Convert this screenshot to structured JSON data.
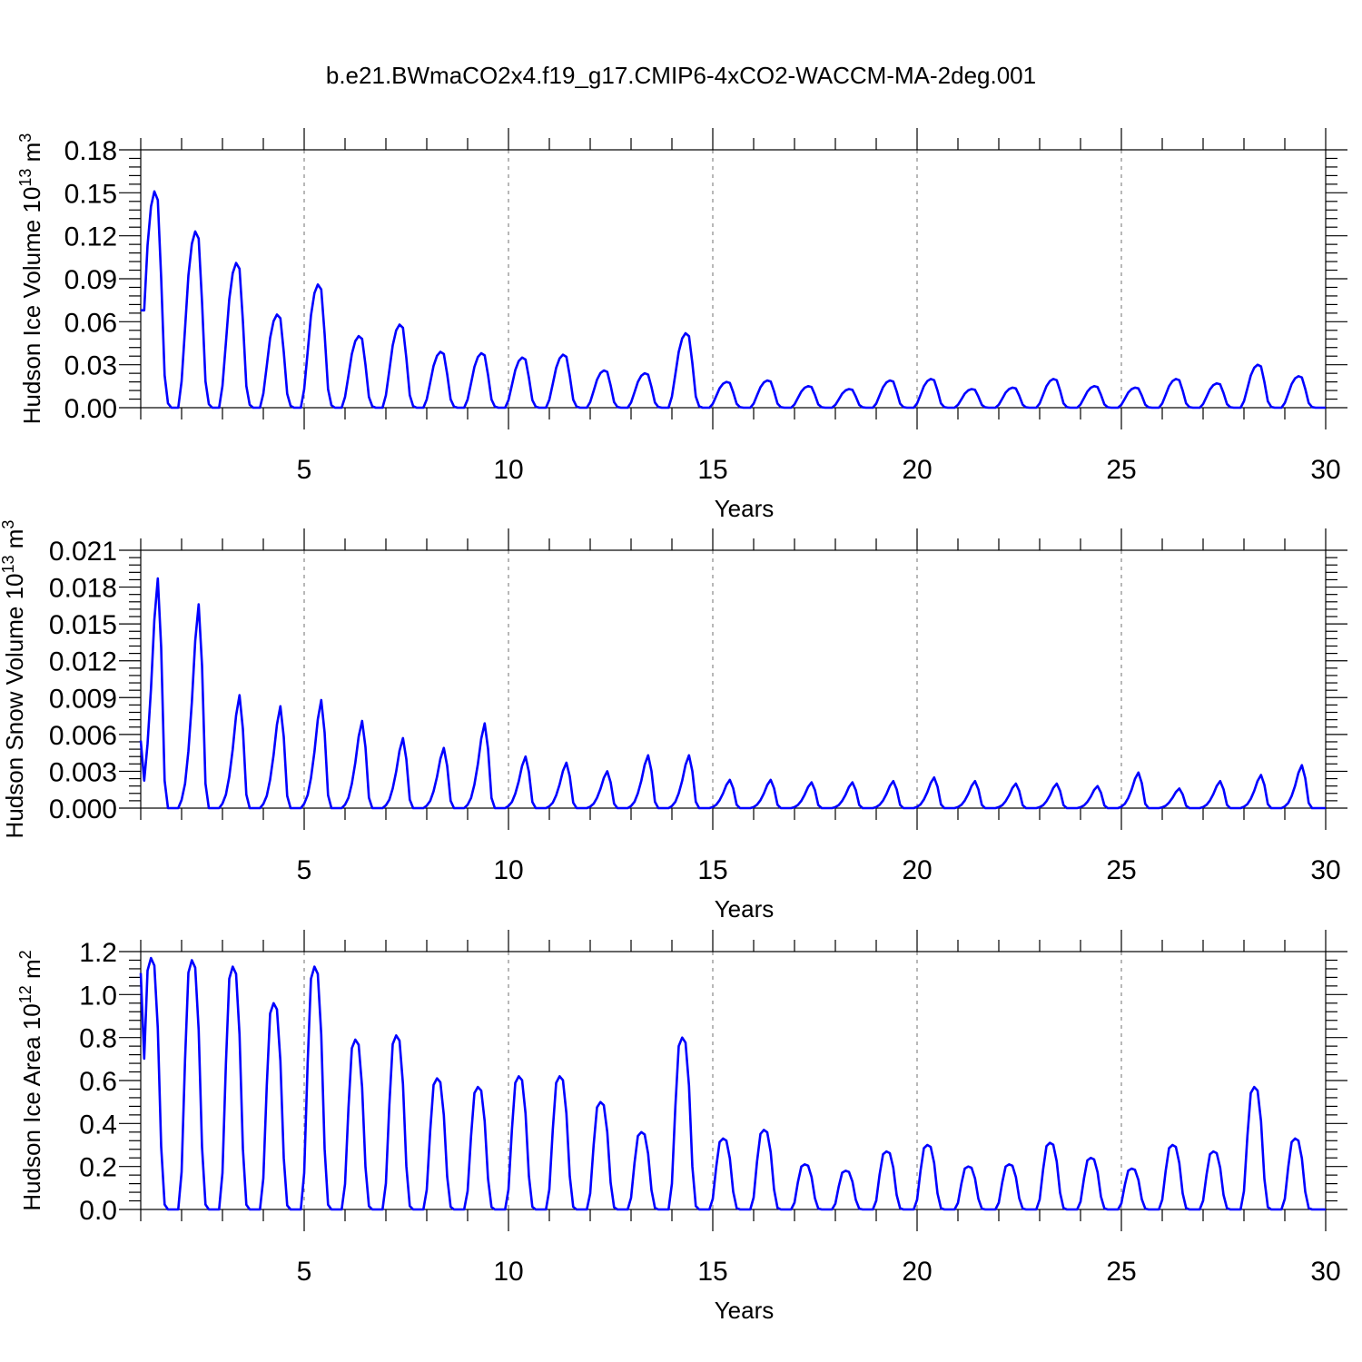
{
  "title": "b.e21.BWmaCO2x4.f19_g17.CMIP6-4xCO2-WACCM-MA-2deg.001",
  "colors": {
    "series": "#0000ff",
    "grid": "#888888",
    "axis": "#000000"
  },
  "chart_data": [
    {
      "type": "line",
      "ylabel": {
        "text": "Hudson Ice Volume 10",
        "sup1": "13",
        "mid": " m",
        "sup2": "3"
      },
      "xlabel": "Years",
      "xlim": [
        1,
        30
      ],
      "ylim": [
        0,
        0.18
      ],
      "xticks": [
        "5",
        "10",
        "15",
        "20",
        "25",
        "30"
      ],
      "xtick_values": [
        5,
        10,
        15,
        20,
        25,
        30
      ],
      "yticks": [
        "0.00",
        "0.03",
        "0.06",
        "0.09",
        "0.12",
        "0.15",
        "0.18"
      ],
      "ytick_values": [
        0,
        0.03,
        0.06,
        0.09,
        0.12,
        0.15,
        0.18
      ],
      "grid": "dashed vertical at major x ticks",
      "series": [
        {
          "color": "#0000ff",
          "peaks": [
            0.151,
            0.123,
            0.101,
            0.065,
            0.086,
            0.05,
            0.058,
            0.039,
            0.038,
            0.035,
            0.037,
            0.026,
            0.024,
            0.052,
            0.018,
            0.019,
            0.015,
            0.013,
            0.019,
            0.02,
            0.013,
            0.014,
            0.02,
            0.015,
            0.014,
            0.02,
            0.017,
            0.03,
            0.022
          ],
          "start_value": 0.068,
          "shape": [
            0.15,
            0.45,
            0.75,
            0.93,
            1.0,
            0.96,
            0.6,
            0.15,
            0.02,
            0,
            0,
            0
          ]
        }
      ]
    },
    {
      "type": "line",
      "ylabel": {
        "text": "Hudson Snow Volume 10",
        "sup1": "13",
        "mid": " m",
        "sup2": "3"
      },
      "xlabel": "Years",
      "xlim": [
        1,
        30
      ],
      "ylim": [
        0,
        0.021
      ],
      "xticks": [
        "5",
        "10",
        "15",
        "20",
        "25",
        "30"
      ],
      "xtick_values": [
        5,
        10,
        15,
        20,
        25,
        30
      ],
      "yticks": [
        "0.000",
        "0.003",
        "0.006",
        "0.009",
        "0.012",
        "0.015",
        "0.018",
        "0.021"
      ],
      "ytick_values": [
        0,
        0.003,
        0.006,
        0.009,
        0.012,
        0.015,
        0.018,
        0.021
      ],
      "grid": "dashed vertical at major x ticks",
      "series": [
        {
          "color": "#0000ff",
          "peaks": [
            0.0187,
            0.0166,
            0.0092,
            0.0083,
            0.0088,
            0.0071,
            0.0057,
            0.0049,
            0.0069,
            0.0042,
            0.0037,
            0.003,
            0.0043,
            0.0043,
            0.0023,
            0.0023,
            0.0021,
            0.0021,
            0.0022,
            0.0025,
            0.0022,
            0.002,
            0.002,
            0.0018,
            0.0029,
            0.0016,
            0.0022,
            0.0027,
            0.0035
          ],
          "start_value": 0.0055,
          "shape": [
            0.04,
            0.12,
            0.28,
            0.52,
            0.82,
            1.0,
            0.7,
            0.12,
            0.0,
            0,
            0,
            0
          ]
        }
      ]
    },
    {
      "type": "line",
      "ylabel": {
        "text": "Hudson Ice Area 10",
        "sup1": "12",
        "mid": " m",
        "sup2": "2"
      },
      "xlabel": "Years",
      "xlim": [
        1,
        30
      ],
      "ylim": [
        0,
        1.2
      ],
      "xticks": [
        "5",
        "10",
        "15",
        "20",
        "25",
        "30"
      ],
      "xtick_values": [
        5,
        10,
        15,
        20,
        25,
        30
      ],
      "yticks": [
        "0.0",
        "0.2",
        "0.4",
        "0.6",
        "0.8",
        "1.0",
        "1.2"
      ],
      "ytick_values": [
        0,
        0.2,
        0.4,
        0.6,
        0.8,
        1.0,
        1.2
      ],
      "grid": "dashed vertical at major x ticks",
      "series": [
        {
          "color": "#0000ff",
          "peaks": [
            1.17,
            1.16,
            1.13,
            0.96,
            1.13,
            0.79,
            0.81,
            0.61,
            0.57,
            0.62,
            0.62,
            0.5,
            0.36,
            0.8,
            0.33,
            0.37,
            0.21,
            0.18,
            0.27,
            0.3,
            0.2,
            0.21,
            0.31,
            0.24,
            0.19,
            0.3,
            0.27,
            0.57,
            0.33
          ],
          "start_value": 1.1,
          "shape": [
            0.15,
            0.6,
            0.95,
            1.0,
            0.97,
            0.72,
            0.25,
            0.02,
            0.0,
            0,
            0,
            0
          ]
        }
      ]
    }
  ]
}
